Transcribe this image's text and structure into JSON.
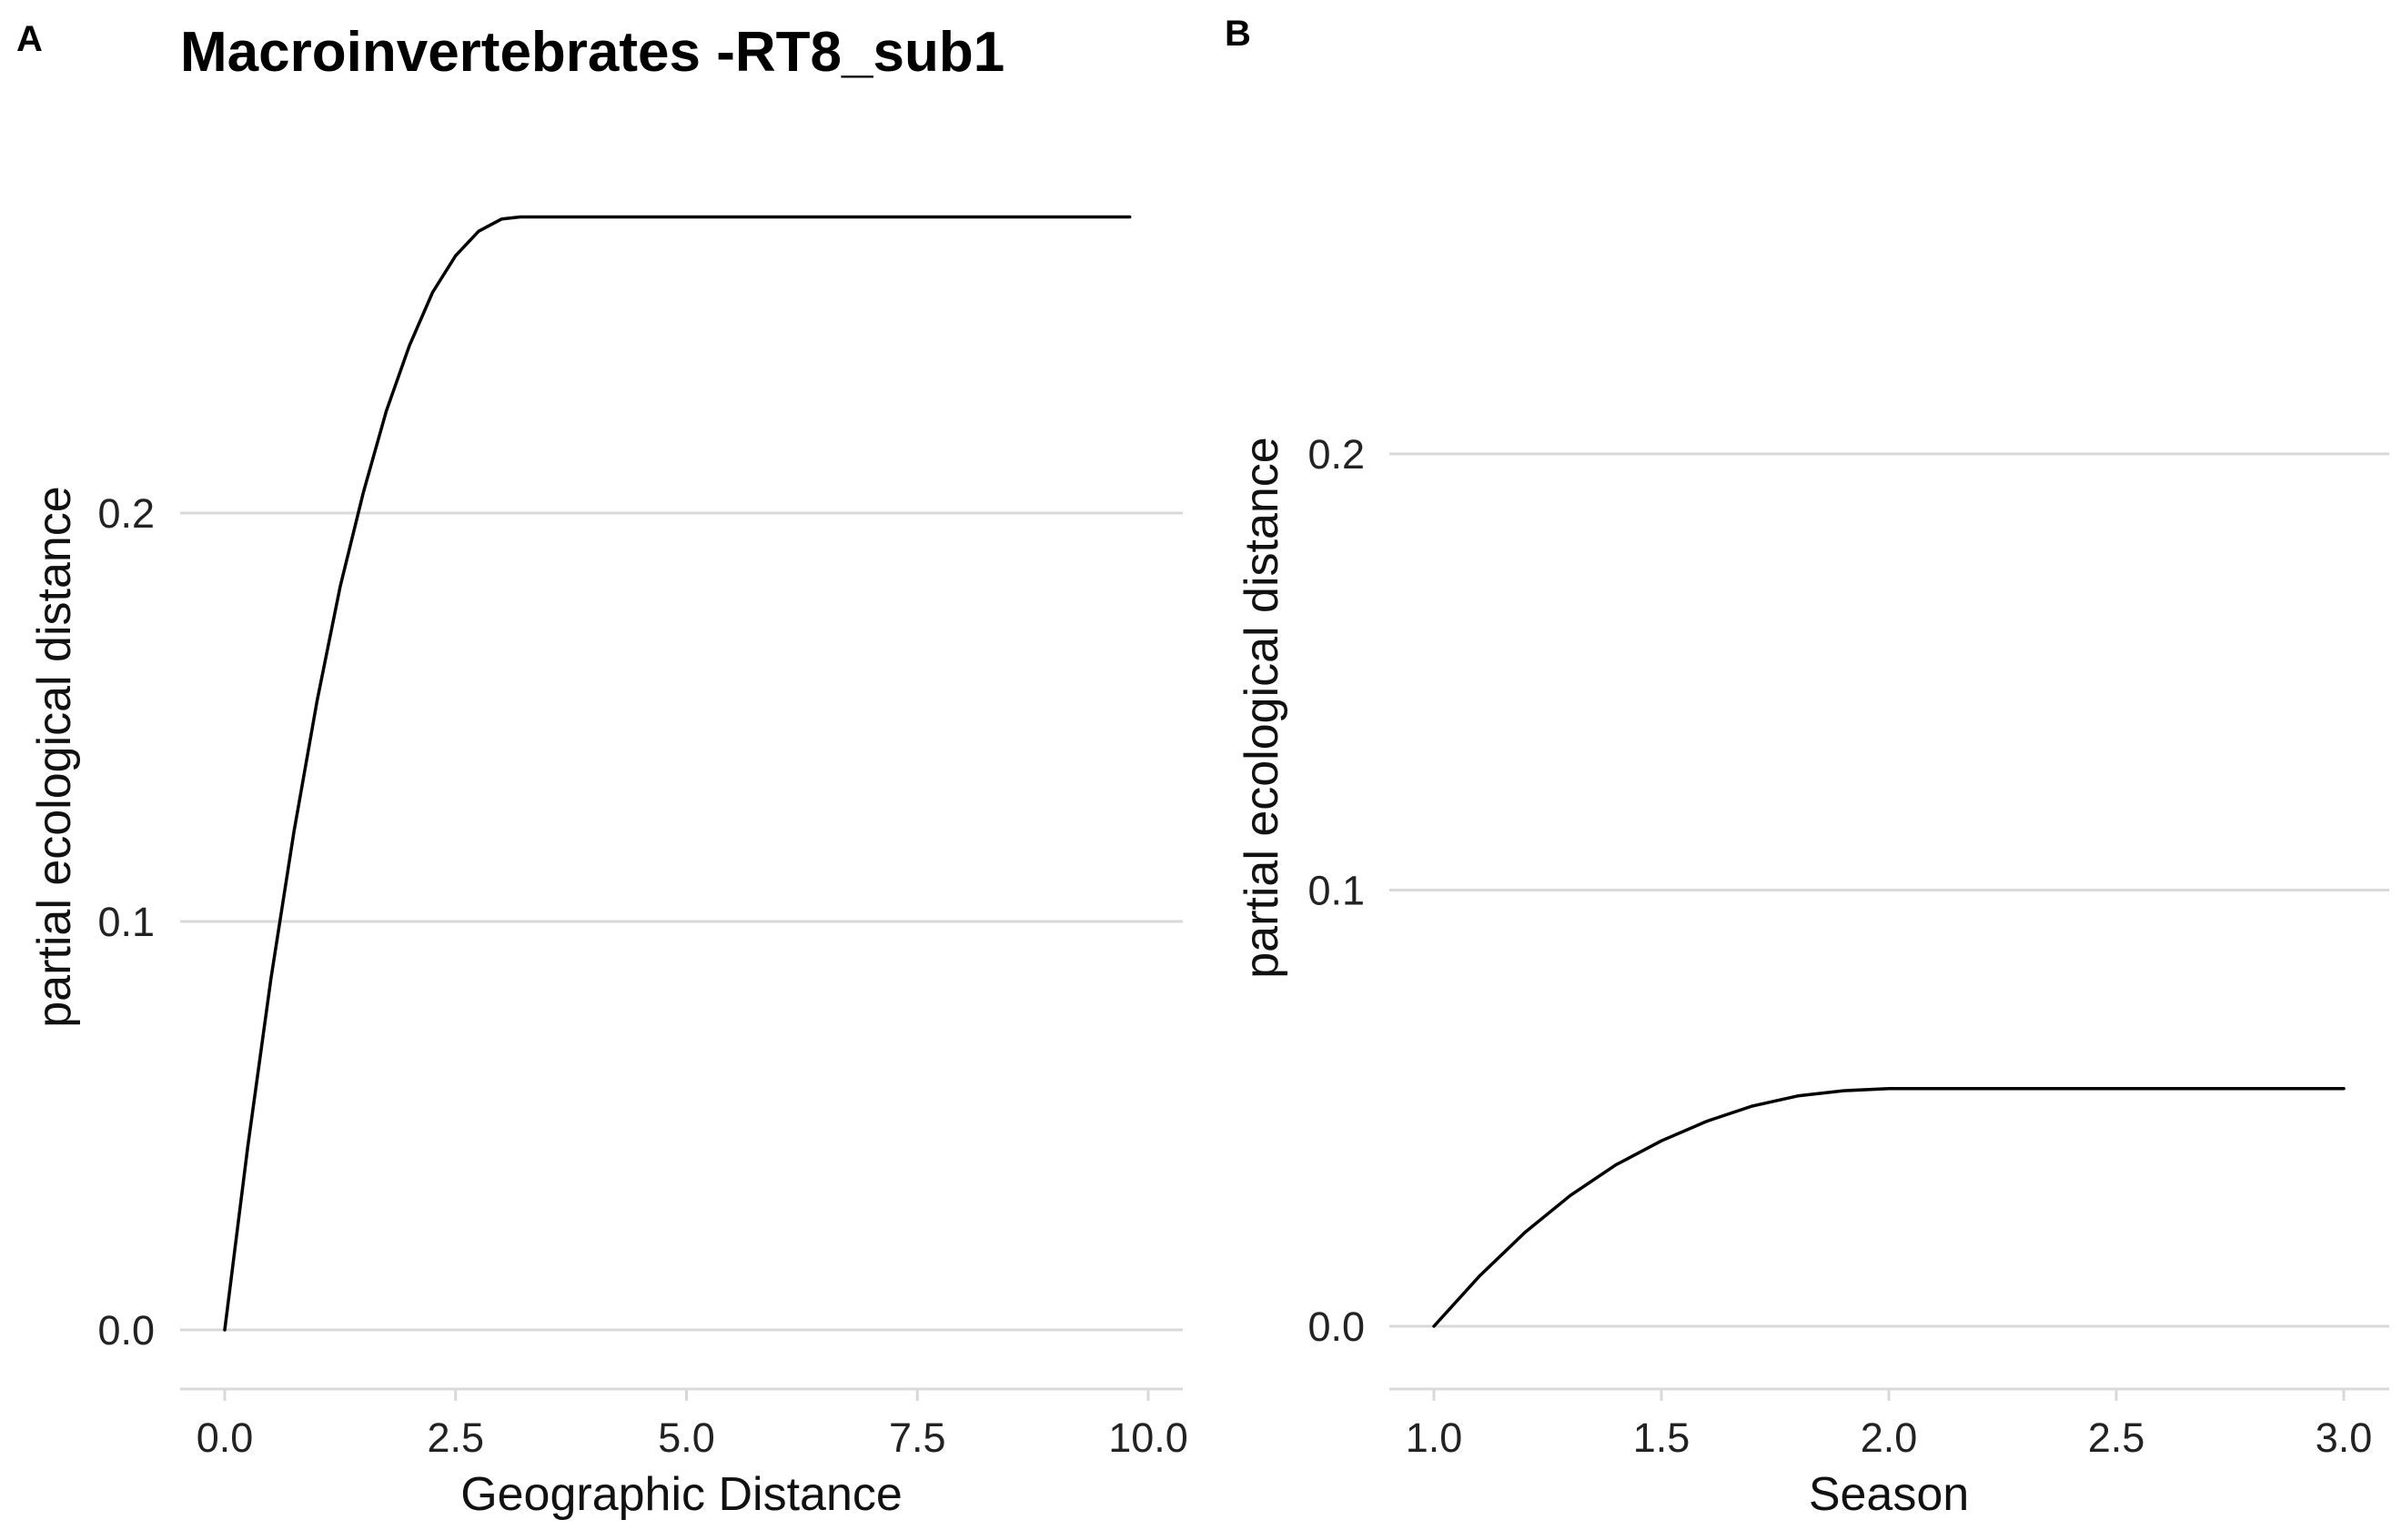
{
  "chart_data": [
    {
      "panel": "A",
      "type": "line",
      "title": "Macroinvertebrates -RT8_sub1",
      "xlabel": "Geographic Distance",
      "ylabel": "partial ecological distance",
      "xticks": [
        "0.0",
        "2.5",
        "5.0",
        "7.5",
        "10.0"
      ],
      "yticks": [
        "0.0",
        "0.1",
        "0.2"
      ],
      "xlim": [
        0,
        10
      ],
      "ylim": [
        0,
        0.27
      ],
      "grid": "horizontal",
      "series": [
        {
          "x": [
            0,
            0.25,
            0.5,
            0.75,
            1.0,
            1.25,
            1.5,
            1.75,
            2.0,
            2.25,
            2.5,
            2.75,
            3.0,
            3.2,
            5.0,
            7.5,
            9.8
          ],
          "y": [
            0,
            0.045,
            0.086,
            0.122,
            0.154,
            0.182,
            0.205,
            0.225,
            0.241,
            0.254,
            0.263,
            0.269,
            0.272,
            0.2725,
            0.2725,
            0.2725,
            0.2725
          ]
        }
      ]
    },
    {
      "panel": "B",
      "type": "line",
      "title": "",
      "xlabel": "Season",
      "ylabel": "partial ecological distance",
      "xticks": [
        "1.0",
        "1.5",
        "2.0",
        "2.5",
        "3.0"
      ],
      "yticks": [
        "0.0",
        "0.1",
        "0.2"
      ],
      "xlim": [
        1,
        3
      ],
      "ylim": [
        0,
        0.2
      ],
      "grid": "horizontal",
      "series": [
        {
          "x": [
            1.0,
            1.1,
            1.2,
            1.3,
            1.4,
            1.5,
            1.6,
            1.7,
            1.8,
            1.9,
            2.0,
            2.5,
            3.0
          ],
          "y": [
            0,
            0.0115,
            0.0215,
            0.03,
            0.037,
            0.0425,
            0.047,
            0.0505,
            0.0528,
            0.054,
            0.0545,
            0.0545,
            0.0545
          ]
        }
      ]
    }
  ]
}
